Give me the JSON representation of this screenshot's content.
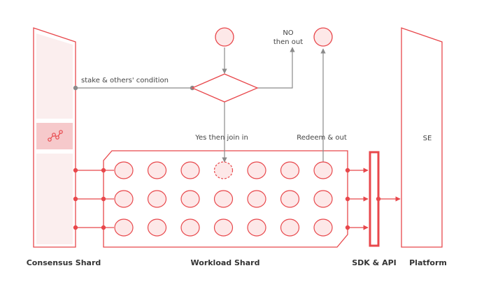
{
  "labels": {
    "consensus_shard": "Consensus Shard",
    "workload_shard": "Workload Shard",
    "sdk_api": "SDK & API",
    "platform": "Platform",
    "se": "SE",
    "stake_condition": "stake & others' condition",
    "no_then_out_line1": "NO",
    "no_then_out_line2": "then out",
    "yes_then_join": "Yes then join in",
    "redeem_out": "Redeem & out"
  },
  "colors": {
    "accent": "#e8474b",
    "fill": "#fde8e8",
    "panel_fill": "#fbeeee",
    "line": "#8a8a8a",
    "text": "#333333"
  },
  "icons": {
    "consensus_node": "network-graph-icon"
  },
  "workload_grid": {
    "rows": 3,
    "cols": 7,
    "pending_node": {
      "row": 0,
      "col": 3
    }
  }
}
